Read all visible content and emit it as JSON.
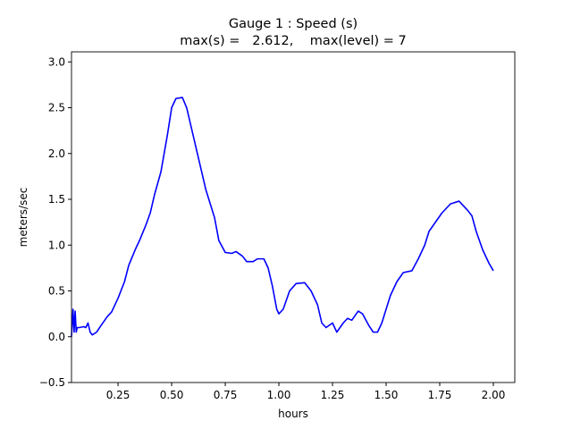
{
  "chart_data": {
    "type": "line",
    "title": "Gauge 1 : Speed (s)",
    "subtitle": "max(s) =   2.612,    max(level) = 7",
    "xlabel": "hours",
    "ylabel": "meters/sec",
    "xlim": [
      0.033,
      2.1
    ],
    "ylim": [
      -0.5,
      3.11
    ],
    "xticks": [
      {
        "value": 0.25,
        "label": "0.25"
      },
      {
        "value": 0.5,
        "label": "0.50"
      },
      {
        "value": 0.75,
        "label": "0.75"
      },
      {
        "value": 1,
        "label": "1.00"
      },
      {
        "value": 1.25,
        "label": "1.25"
      },
      {
        "value": 1.5,
        "label": "1.50"
      },
      {
        "value": 1.75,
        "label": "1.75"
      },
      {
        "value": 2,
        "label": "2.00"
      }
    ],
    "yticks": [
      {
        "value": -0.5,
        "label": "−0.5"
      },
      {
        "value": 0,
        "label": "0.0"
      },
      {
        "value": 0.5,
        "label": "0.5"
      },
      {
        "value": 1,
        "label": "1.0"
      },
      {
        "value": 1.5,
        "label": "1.5"
      },
      {
        "value": 2,
        "label": "2.0"
      },
      {
        "value": 2.5,
        "label": "2.5"
      },
      {
        "value": 3,
        "label": "3.0"
      }
    ],
    "x": [
      0.033,
      0.04,
      0.045,
      0.05,
      0.055,
      0.06,
      0.07,
      0.09,
      0.1,
      0.11,
      0.12,
      0.13,
      0.15,
      0.17,
      0.2,
      0.22,
      0.25,
      0.28,
      0.3,
      0.33,
      0.35,
      0.38,
      0.4,
      0.42,
      0.45,
      0.48,
      0.5,
      0.52,
      0.55,
      0.57,
      0.6,
      0.63,
      0.66,
      0.7,
      0.72,
      0.75,
      0.78,
      0.8,
      0.83,
      0.85,
      0.88,
      0.9,
      0.93,
      0.95,
      0.97,
      0.99,
      1.0,
      1.02,
      1.05,
      1.08,
      1.12,
      1.15,
      1.18,
      1.2,
      1.22,
      1.25,
      1.27,
      1.3,
      1.32,
      1.34,
      1.37,
      1.39,
      1.42,
      1.44,
      1.46,
      1.48,
      1.5,
      1.52,
      1.55,
      1.58,
      1.62,
      1.65,
      1.68,
      1.7,
      1.73,
      1.76,
      1.8,
      1.84,
      1.88,
      1.9,
      1.92,
      1.95,
      1.98,
      2.0
    ],
    "series": [
      {
        "name": "s",
        "color": "#0000ff",
        "values": [
          0.0,
          0.3,
          0.05,
          0.28,
          0.05,
          0.1,
          0.1,
          0.11,
          0.1,
          0.15,
          0.05,
          0.02,
          0.05,
          0.12,
          0.22,
          0.27,
          0.42,
          0.6,
          0.78,
          0.95,
          1.05,
          1.22,
          1.35,
          1.55,
          1.8,
          2.2,
          2.5,
          2.6,
          2.612,
          2.5,
          2.2,
          1.9,
          1.6,
          1.3,
          1.05,
          0.92,
          0.91,
          0.93,
          0.88,
          0.82,
          0.82,
          0.85,
          0.85,
          0.75,
          0.55,
          0.3,
          0.25,
          0.3,
          0.5,
          0.58,
          0.59,
          0.5,
          0.35,
          0.15,
          0.1,
          0.15,
          0.05,
          0.15,
          0.2,
          0.18,
          0.28,
          0.25,
          0.12,
          0.05,
          0.05,
          0.15,
          0.3,
          0.45,
          0.6,
          0.7,
          0.72,
          0.85,
          1.0,
          1.15,
          1.25,
          1.35,
          1.45,
          1.48,
          1.38,
          1.32,
          1.15,
          0.95,
          0.8,
          0.72
        ]
      }
    ]
  }
}
